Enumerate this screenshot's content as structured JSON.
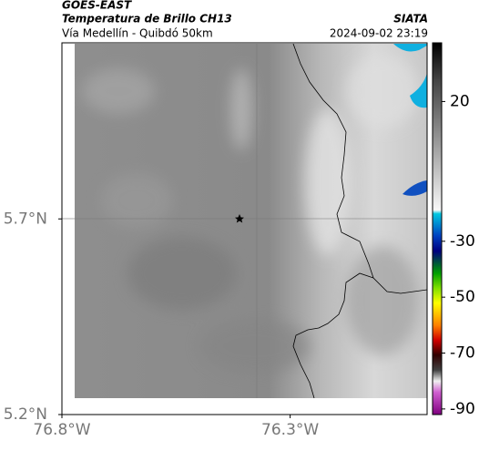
{
  "header": {
    "satellite": "GOES-EAST",
    "title": "Temperatura de Brillo CH13",
    "subtitle": "Vía Medellín - Quibdó 50km",
    "source": "SIATA",
    "datetime": "2024-09-02 23:19"
  },
  "map": {
    "xlim": [
      -76.8,
      -76.0
    ],
    "ylim": [
      5.2,
      6.15
    ],
    "xticks": [
      {
        "value": -76.8,
        "label": "76.8°W"
      },
      {
        "value": -76.3,
        "label": "76.3°W"
      }
    ],
    "yticks": [
      {
        "value": 5.7,
        "label": "5.7°N"
      },
      {
        "value": 5.2,
        "label": "5.2°N"
      }
    ]
  },
  "colorbar": {
    "clim": [
      -92,
      41
    ],
    "ticks": [
      20,
      -30,
      -50,
      -70,
      -90
    ]
  }
}
